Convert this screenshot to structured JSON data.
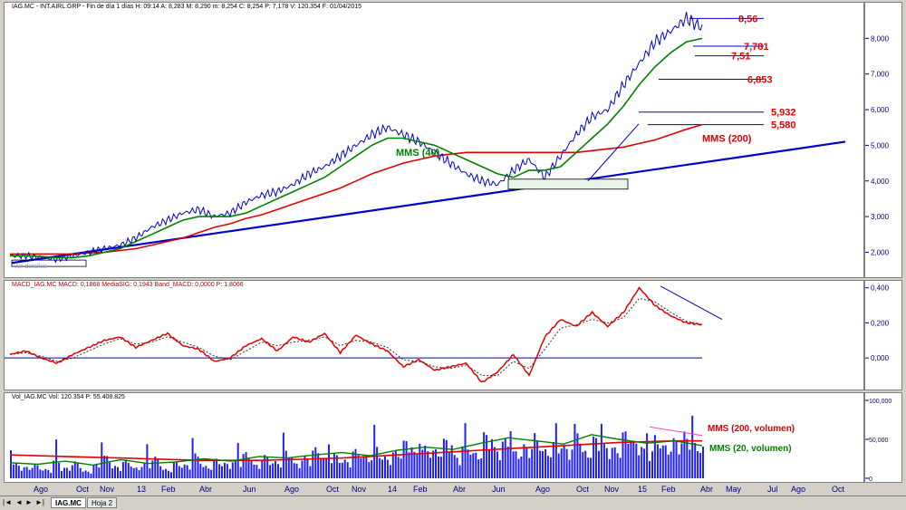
{
  "price_header": "IAG.MC - INT.AIRL.GRP - Fin de día 1 días  H: 09:14  A: 8,283  M: 8,290  m: 8,254  C: 8,254  P: 7,178  V: 120.354  F: 01/04/2015",
  "macd_header": "MACD_IAG.MC  MACD: 0,1868  MediaSIG: 0,1943  Band_MACD: 0,0000  P: 1,8066",
  "vol_header": "Vol_IAG.MC  Vol: 120.354  P: 55.408.825",
  "tabs": {
    "active": "IAG.MC",
    "other": "Hoja 2"
  },
  "small_label": "Ver detalles",
  "colors": {
    "price": "#0000cc",
    "mms40": "#008000",
    "mms200": "#e00000",
    "trend": "#0000cc",
    "macd": "#e00000",
    "signal": "#333333",
    "annotation": "#e00000"
  },
  "x_axis_labels": [
    "Ago",
    "Oct",
    "Nov",
    "13",
    "Feb",
    "Abr",
    "Jun",
    "Ago",
    "Oct",
    "Nov",
    "14",
    "Feb",
    "Abr",
    "Jun",
    "Ago",
    "Oct",
    "Nov",
    "15",
    "Feb",
    "Abr",
    "May",
    "Jul",
    "Ago",
    "Oct"
  ],
  "chart_data": [
    {
      "type": "line",
      "panel": "price",
      "ylim": [
        1.3,
        9.0
      ],
      "y_ticks": [
        "2,000",
        "3,000",
        "4,000",
        "5,000",
        "6,000",
        "7,000",
        "8,000"
      ],
      "series": [
        {
          "name": "",
          "kind": "price",
          "values": [
            1.9,
            1.9,
            1.85,
            1.8,
            1.9,
            2.0,
            2.1,
            2.2,
            2.4,
            2.7,
            2.9,
            3.1,
            3.2,
            3.0,
            3.1,
            3.4,
            3.6,
            3.7,
            3.9,
            4.2,
            4.4,
            4.7,
            5.0,
            5.3,
            5.5,
            5.3,
            5.1,
            4.8,
            4.5,
            4.2,
            4.0,
            3.9,
            4.3,
            4.6,
            4.1,
            4.7,
            5.3,
            5.8,
            6.0,
            6.7,
            7.3,
            7.9,
            8.2,
            8.56,
            8.3
          ]
        },
        {
          "name": "MMS (40)",
          "kind": "mms40",
          "values": [
            1.9,
            1.9,
            1.88,
            1.85,
            1.85,
            1.9,
            2.0,
            2.1,
            2.3,
            2.5,
            2.7,
            2.9,
            3.0,
            3.0,
            3.0,
            3.1,
            3.3,
            3.5,
            3.7,
            3.9,
            4.1,
            4.4,
            4.7,
            5.0,
            5.2,
            5.2,
            5.1,
            5.0,
            4.8,
            4.6,
            4.4,
            4.2,
            4.1,
            4.3,
            4.3,
            4.4,
            4.8,
            5.2,
            5.6,
            6.1,
            6.7,
            7.2,
            7.6,
            7.9,
            8.0
          ]
        },
        {
          "name": "MMS (200)",
          "kind": "mms200",
          "values": [
            1.95,
            1.95,
            1.95,
            1.95,
            1.95,
            1.98,
            2.0,
            2.05,
            2.1,
            2.2,
            2.3,
            2.4,
            2.55,
            2.7,
            2.8,
            2.95,
            3.05,
            3.2,
            3.35,
            3.5,
            3.65,
            3.8,
            4.0,
            4.2,
            4.35,
            4.5,
            4.6,
            4.7,
            4.75,
            4.8,
            4.8,
            4.8,
            4.8,
            4.8,
            4.8,
            4.8,
            4.8,
            4.85,
            4.9,
            4.95,
            5.05,
            5.15,
            5.3,
            5.45,
            5.58
          ]
        }
      ],
      "annotations": [
        "8,56",
        "7,781",
        "7,51",
        "6,853",
        "5,932",
        "5,580",
        "MMS (200)",
        "MMS (40)"
      ]
    },
    {
      "type": "line",
      "panel": "macd",
      "ylim": [
        -0.18,
        0.44
      ],
      "y_ticks": [
        "0,400",
        "0,200",
        "0,000"
      ],
      "series": [
        {
          "name": "",
          "kind": "macd",
          "values": [
            0.02,
            0.04,
            0.0,
            -0.03,
            0.02,
            0.06,
            0.1,
            0.12,
            0.06,
            0.1,
            0.14,
            0.07,
            0.05,
            -0.02,
            0.0,
            0.07,
            0.11,
            0.04,
            0.12,
            0.09,
            0.14,
            0.03,
            0.13,
            0.08,
            0.04,
            -0.05,
            -0.01,
            -0.07,
            -0.05,
            -0.03,
            -0.14,
            -0.08,
            0.02,
            -0.1,
            0.12,
            0.22,
            0.18,
            0.26,
            0.18,
            0.26,
            0.4,
            0.3,
            0.24,
            0.2,
            0.19
          ]
        },
        {
          "name": "",
          "kind": "signal",
          "values": [
            0.02,
            0.03,
            0.01,
            -0.02,
            0.0,
            0.04,
            0.08,
            0.11,
            0.08,
            0.09,
            0.12,
            0.09,
            0.06,
            0.01,
            -0.01,
            0.04,
            0.09,
            0.07,
            0.09,
            0.1,
            0.12,
            0.07,
            0.1,
            0.09,
            0.06,
            -0.01,
            -0.02,
            -0.05,
            -0.06,
            -0.04,
            -0.1,
            -0.1,
            -0.02,
            -0.06,
            0.05,
            0.17,
            0.19,
            0.22,
            0.2,
            0.23,
            0.34,
            0.32,
            0.26,
            0.21,
            0.19
          ]
        }
      ]
    },
    {
      "type": "bar",
      "panel": "volume",
      "ylim": [
        0,
        100
      ],
      "y_ticks": [
        "100,000",
        "50,000",
        "0"
      ],
      "series": [
        {
          "name": "",
          "kind": "volume",
          "values": [
            20,
            15,
            18,
            12,
            25,
            14,
            22,
            10,
            18,
            30,
            16,
            24,
            14,
            20,
            28,
            12,
            22,
            18,
            32,
            16,
            26,
            20,
            24,
            34,
            18,
            30,
            22,
            36,
            20,
            28,
            40,
            26,
            32,
            24,
            38,
            30,
            44,
            28,
            36,
            50,
            34,
            42,
            38,
            52,
            30,
            46,
            34,
            60,
            40,
            52,
            36,
            44,
            58,
            38,
            48,
            42,
            70,
            36,
            55,
            44,
            40,
            62,
            48,
            38,
            56,
            44,
            52,
            60,
            46,
            42
          ]
        },
        {
          "name": "MMS (200, volumen)",
          "kind": "vol200",
          "values": [
            30,
            29,
            28,
            27,
            26,
            25,
            24,
            23,
            23,
            23,
            24,
            25,
            26,
            28,
            30,
            32,
            34,
            36,
            38,
            40,
            42,
            44,
            46,
            47,
            48,
            48
          ]
        },
        {
          "name": "MMS (20, volumen)",
          "kind": "vol20",
          "values": [
            20,
            18,
            22,
            17,
            24,
            19,
            21,
            25,
            22,
            28,
            26,
            30,
            33,
            29,
            36,
            40,
            37,
            45,
            52,
            48,
            44,
            56,
            50,
            45,
            48,
            42
          ]
        }
      ],
      "annotations": [
        "MMS (200, volumen)",
        "MMS (20, volumen)"
      ]
    }
  ]
}
